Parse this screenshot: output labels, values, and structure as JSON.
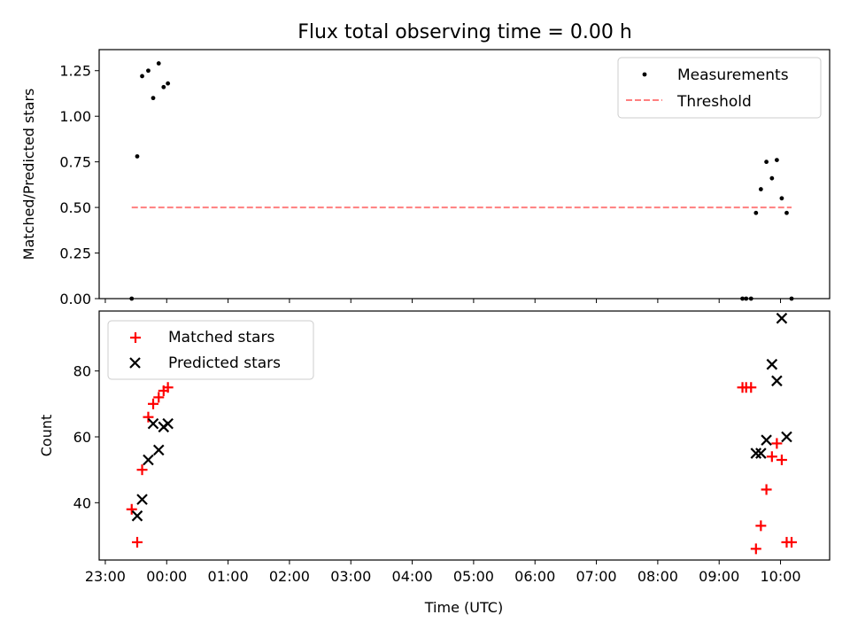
{
  "chart_data": {
    "type": "scatter",
    "title": "Flux total observing time = 0.00 h",
    "xlabel": "Time (UTC)",
    "x_unit": "hours since 00:00 UTC",
    "xlim": [
      -1.1,
      10.8
    ],
    "x_ticks": [
      {
        "value": -1,
        "label": "23:00"
      },
      {
        "value": 0,
        "label": "00:00"
      },
      {
        "value": 1,
        "label": "01:00"
      },
      {
        "value": 2,
        "label": "02:00"
      },
      {
        "value": 3,
        "label": "03:00"
      },
      {
        "value": 4,
        "label": "04:00"
      },
      {
        "value": 5,
        "label": "05:00"
      },
      {
        "value": 6,
        "label": "06:00"
      },
      {
        "value": 7,
        "label": "07:00"
      },
      {
        "value": 8,
        "label": "08:00"
      },
      {
        "value": 9,
        "label": "09:00"
      },
      {
        "value": 10,
        "label": "10:00"
      }
    ],
    "top": {
      "ylabel": "Matched/Predicted stars",
      "ylim": [
        0.0,
        1.3654
      ],
      "y_ticks": [
        {
          "value": 0.0,
          "label": "0.00"
        },
        {
          "value": 0.25,
          "label": "0.25"
        },
        {
          "value": 0.5,
          "label": "0.50"
        },
        {
          "value": 0.75,
          "label": "0.75"
        },
        {
          "value": 1.0,
          "label": "1.00"
        },
        {
          "value": 1.25,
          "label": "1.25"
        }
      ],
      "legend": {
        "position": "upper right",
        "measurements_label": "Measurements",
        "threshold_label": "Threshold"
      },
      "measurements": {
        "color": "#000000",
        "x": [
          -0.57,
          -0.48,
          -0.4,
          -0.3,
          -0.22,
          -0.13,
          -0.05,
          0.02,
          9.38,
          9.44,
          9.52,
          9.6,
          9.68,
          9.77,
          9.86,
          9.94,
          10.02,
          10.1,
          10.18
        ],
        "y": [
          0.0,
          0.78,
          1.22,
          1.25,
          1.1,
          1.29,
          1.16,
          1.18,
          0.0,
          0.0,
          0.0,
          0.47,
          0.6,
          0.75,
          0.66,
          0.76,
          0.55,
          0.47,
          0.0
        ]
      },
      "threshold": {
        "color": "#ff7f7f",
        "y": 0.5,
        "x_start": -0.57,
        "x_end": 10.18
      }
    },
    "bottom": {
      "ylabel": "Count",
      "ylim": [
        22.6,
        98.2
      ],
      "y_ticks": [
        {
          "value": 40,
          "label": "40"
        },
        {
          "value": 60,
          "label": "60"
        },
        {
          "value": 80,
          "label": "80"
        }
      ],
      "legend": {
        "position": "upper left",
        "matched_label": "Matched stars",
        "predicted_label": "Predicted stars"
      },
      "series": [
        {
          "name": "Matched stars",
          "marker": "+",
          "color": "#ff0000",
          "x": [
            -0.57,
            -0.48,
            -0.4,
            -0.3,
            -0.22,
            -0.13,
            -0.05,
            0.02,
            9.38,
            9.44,
            9.52,
            9.6,
            9.68,
            9.77,
            9.86,
            9.94,
            10.02,
            10.1,
            10.18
          ],
          "y": [
            38,
            28,
            50,
            66,
            70,
            72,
            74,
            75,
            75,
            75,
            75,
            26,
            33,
            44,
            54,
            58,
            53,
            28,
            28
          ]
        },
        {
          "name": "Predicted stars",
          "marker": "x",
          "color": "#000000",
          "x": [
            -0.48,
            -0.4,
            -0.3,
            -0.22,
            -0.13,
            -0.05,
            0.02,
            9.6,
            9.68,
            9.77,
            9.86,
            9.94,
            10.02,
            10.1
          ],
          "y": [
            36,
            41,
            53,
            64,
            56,
            63,
            64,
            55,
            55,
            59,
            82,
            77,
            96,
            60
          ]
        }
      ]
    }
  }
}
